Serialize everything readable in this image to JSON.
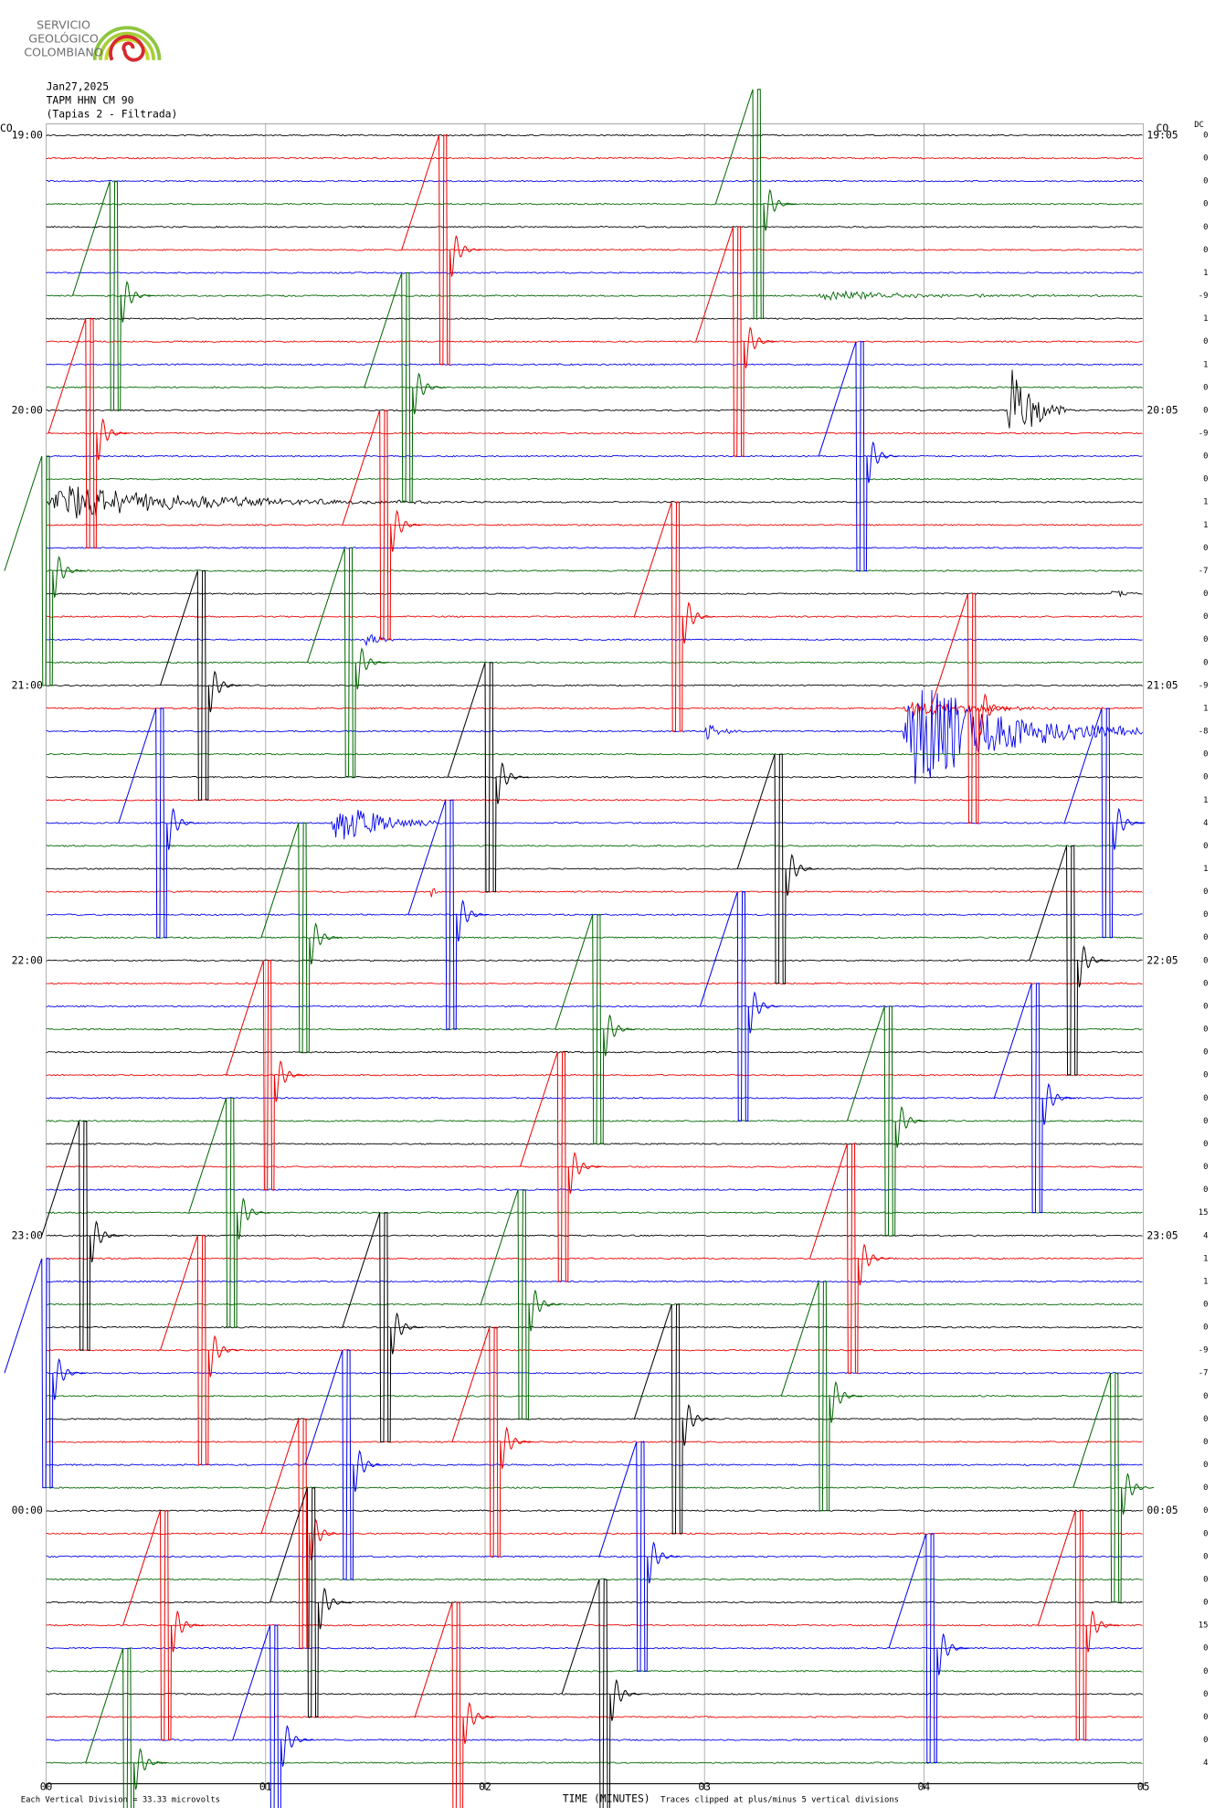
{
  "chart_data": {
    "type": "helicorder",
    "logo": {
      "lines": [
        "SERVICIO",
        "GEOLÓGICO",
        "COLOMBIANO"
      ]
    },
    "header": [
      "Jan27,2025",
      "TAPM HHN CM 90",
      "(Tapias 2 - Filtrada)"
    ],
    "network_left": "CO",
    "network_right": "CO",
    "dc_title": "DC",
    "x_label": "TIME (MINUTES)",
    "scale_note": "Each Vertical Division = 33.33 microvolts",
    "clip_note": "Traces clipped at plus/minus 5 vertical divisions",
    "clip_divisions": 5,
    "xlim": [
      0,
      5
    ],
    "xticks": [
      {
        "value": 0,
        "label": "00"
      },
      {
        "value": 1,
        "label": "01"
      },
      {
        "value": 2,
        "label": "02"
      },
      {
        "value": 3,
        "label": "03"
      },
      {
        "value": 4,
        "label": "04"
      },
      {
        "value": 5,
        "label": "05"
      }
    ],
    "colors": [
      "#000000",
      "#ee0000",
      "#0000ee",
      "#006600"
    ],
    "left_labels": [
      {
        "row": 0,
        "label": "19:00"
      },
      {
        "row": 12,
        "label": "20:00"
      },
      {
        "row": 24,
        "label": "21:00"
      },
      {
        "row": 36,
        "label": "22:00"
      },
      {
        "row": 48,
        "label": "23:00"
      },
      {
        "row": 60,
        "label": "00:00"
      }
    ],
    "right_labels": [
      {
        "row": 0,
        "label": "19:05"
      },
      {
        "row": 12,
        "label": "20:05"
      },
      {
        "row": 24,
        "label": "21:05"
      },
      {
        "row": 36,
        "label": "22:05"
      },
      {
        "row": 48,
        "label": "23:05"
      },
      {
        "row": 60,
        "label": "00:05"
      }
    ],
    "dc_offsets": [
      0,
      0,
      0,
      0,
      0,
      0,
      1,
      -9,
      1,
      0,
      1,
      0,
      0,
      -9,
      0,
      0,
      1,
      1,
      0,
      -7,
      0,
      0,
      0,
      0,
      -9,
      1,
      -8,
      0,
      0,
      1,
      4,
      0,
      1,
      0,
      0,
      0,
      0,
      0,
      0,
      0,
      0,
      0,
      0,
      0,
      0,
      0,
      0,
      15,
      4,
      1,
      1,
      0,
      0,
      -9,
      -7,
      0,
      0,
      0,
      0,
      0,
      0,
      0,
      0,
      0,
      0,
      15,
      0,
      0,
      0,
      0,
      0,
      4
    ],
    "pulses": [
      {
        "row": 7,
        "minute": 0.32
      },
      {
        "row": 5,
        "minute": 1.82
      },
      {
        "row": 3,
        "minute": 3.25
      },
      {
        "row": 13,
        "minute": 0.21
      },
      {
        "row": 11,
        "minute": 1.65
      },
      {
        "row": 9,
        "minute": 3.16
      },
      {
        "row": 14,
        "minute": 3.72
      },
      {
        "row": 19,
        "minute": 0.01
      },
      {
        "row": 17,
        "minute": 1.55
      },
      {
        "row": 24,
        "minute": 0.72
      },
      {
        "row": 23,
        "minute": 1.39
      },
      {
        "row": 21,
        "minute": 2.88
      },
      {
        "row": 25,
        "minute": 4.23
      },
      {
        "row": 30,
        "minute": 0.53
      },
      {
        "row": 28,
        "minute": 2.03
      },
      {
        "row": 32,
        "minute": 3.35
      },
      {
        "row": 30,
        "minute": 4.84
      },
      {
        "row": 35,
        "minute": 1.18
      },
      {
        "row": 34,
        "minute": 1.85
      },
      {
        "row": 38,
        "minute": 3.18
      },
      {
        "row": 36,
        "minute": 4.68
      },
      {
        "row": 41,
        "minute": 1.02
      },
      {
        "row": 39,
        "minute": 2.52
      },
      {
        "row": 43,
        "minute": 3.85
      },
      {
        "row": 42,
        "minute": 4.52
      },
      {
        "row": 48,
        "minute": 0.18
      },
      {
        "row": 47,
        "minute": 0.85
      },
      {
        "row": 45,
        "minute": 2.36
      },
      {
        "row": 49,
        "minute": 3.68
      },
      {
        "row": 54,
        "minute": 0.01
      },
      {
        "row": 53,
        "minute": 0.72
      },
      {
        "row": 52,
        "minute": 1.55
      },
      {
        "row": 51,
        "minute": 2.18
      },
      {
        "row": 56,
        "minute": 2.88
      },
      {
        "row": 55,
        "minute": 3.55
      },
      {
        "row": 59,
        "minute": 4.88
      },
      {
        "row": 61,
        "minute": 1.18
      },
      {
        "row": 58,
        "minute": 1.38
      },
      {
        "row": 57,
        "minute": 2.05
      },
      {
        "row": 64,
        "minute": 1.22
      },
      {
        "row": 62,
        "minute": 2.72
      },
      {
        "row": 66,
        "minute": 4.04
      },
      {
        "row": 65,
        "minute": 0.55
      },
      {
        "row": 65,
        "minute": 4.72
      },
      {
        "row": 68,
        "minute": 2.55
      },
      {
        "row": 69,
        "minute": 1.88
      },
      {
        "row": 70,
        "minute": 1.05
      },
      {
        "row": 71,
        "minute": 0.38
      }
    ],
    "events": [
      {
        "row": 16,
        "minute": 0.0,
        "duration": 1.8,
        "amplitude": 0.9
      },
      {
        "row": 12,
        "minute": 4.38,
        "duration": 0.3,
        "amplitude": 2.4
      },
      {
        "row": 7,
        "minute": 3.5,
        "duration": 1.4,
        "amplitude": 0.25
      },
      {
        "row": 20,
        "minute": 4.85,
        "duration": 0.15,
        "amplitude": 0.3
      },
      {
        "row": 22,
        "minute": 1.45,
        "duration": 0.15,
        "amplitude": 0.5
      },
      {
        "row": 25,
        "minute": 3.9,
        "duration": 1.0,
        "amplitude": 0.4
      },
      {
        "row": 26,
        "minute": 3.9,
        "duration": 1.1,
        "amplitude": 3.0
      },
      {
        "row": 26,
        "minute": 3.0,
        "duration": 0.2,
        "amplitude": 0.5
      },
      {
        "row": 30,
        "minute": 1.3,
        "duration": 0.5,
        "amplitude": 1.3
      },
      {
        "row": 33,
        "minute": 1.75,
        "duration": 0.05,
        "amplitude": 0.6
      }
    ]
  }
}
